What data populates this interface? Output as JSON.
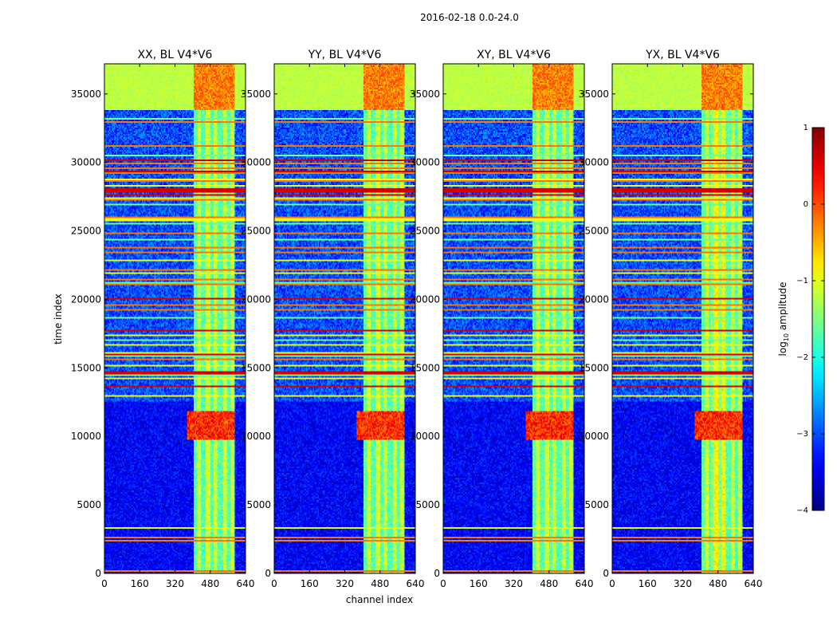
{
  "chart_data": {
    "type": "heatmap",
    "suptitle": "2016-02-18 0.0-24.0",
    "xlabel": "channel index",
    "ylabel": "time index",
    "xlim": [
      0,
      640
    ],
    "ylim": [
      0,
      37200
    ],
    "xticks": [
      0,
      160,
      320,
      480,
      640
    ],
    "yticks": [
      0,
      5000,
      10000,
      15000,
      20000,
      25000,
      30000,
      35000
    ],
    "panels": [
      {
        "title": "XX, BL V4*V6",
        "variant": 0
      },
      {
        "title": "YY, BL V4*V6",
        "variant": 1
      },
      {
        "title": "XY, BL V4*V6",
        "variant": 2
      },
      {
        "title": "YX, BL V4*V6",
        "variant": 3
      }
    ],
    "colorbar": {
      "label_main": "log",
      "label_sub": "10",
      "label_tail": " amplitude",
      "range": [
        -4,
        1
      ],
      "ticks": [
        {
          "value": 1,
          "label": "1"
        },
        {
          "value": 0,
          "label": "0"
        },
        {
          "value": -1,
          "label": "−1"
        },
        {
          "value": -2,
          "label": "−2"
        },
        {
          "value": -3,
          "label": "−3"
        },
        {
          "value": -4,
          "label": "−4"
        }
      ],
      "colormap": "jet"
    },
    "features": {
      "background_level": -3.4,
      "rfi_channel_band": [
        405,
        590
      ],
      "rfi_band_level": -1.4,
      "rfi_channels_strong": [
        430,
        470,
        505,
        545,
        580
      ],
      "flagged_rows_level": -1.0,
      "strong_rfi_time_band": [
        9800,
        11800
      ],
      "strong_rfi_level": 0.3,
      "top_saturated_band": [
        33800,
        37200
      ],
      "top_band_level": -1.2,
      "daytime_band": [
        12500,
        33800
      ],
      "daytime_level": -3.0
    }
  }
}
